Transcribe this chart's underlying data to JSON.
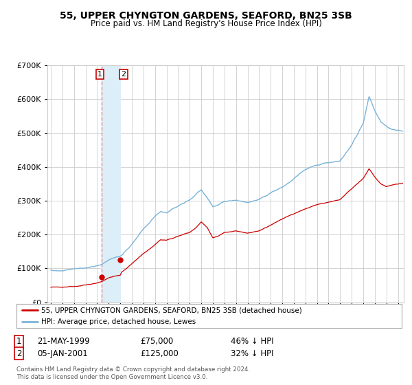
{
  "title": "55, UPPER CHYNGTON GARDENS, SEAFORD, BN25 3SB",
  "subtitle": "Price paid vs. HM Land Registry's House Price Index (HPI)",
  "legend_line1": "55, UPPER CHYNGTON GARDENS, SEAFORD, BN25 3SB (detached house)",
  "legend_line2": "HPI: Average price, detached house, Lewes",
  "transaction1_date": "21-MAY-1999",
  "transaction1_price": 75000,
  "transaction1_hpi": "46% ↓ HPI",
  "transaction2_date": "05-JAN-2001",
  "transaction2_price": 125000,
  "transaction2_hpi": "32% ↓ HPI",
  "footnote": "Contains HM Land Registry data © Crown copyright and database right 2024.\nThis data is licensed under the Open Government Licence v3.0.",
  "hpi_color": "#7ab4d8",
  "price_color": "#cc0000",
  "marker_color": "#cc0000",
  "vline_color": "#e88888",
  "shade_color": "#dceef8",
  "background_color": "#ffffff",
  "grid_color": "#cccccc",
  "ylim": [
    0,
    700000
  ],
  "xlim_start": 1994.7,
  "xlim_end": 2025.5,
  "t1_x": 1999.385,
  "t1_y": 75000,
  "t2_x": 2001.014,
  "t2_y": 125000
}
